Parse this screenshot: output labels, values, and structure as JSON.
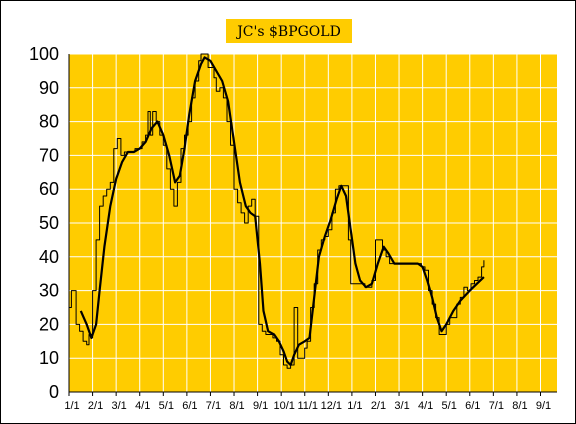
{
  "chart_data": {
    "type": "line",
    "title": "JC's $BPGOLD",
    "ylim": [
      0,
      100
    ],
    "yticks": [
      0,
      10,
      20,
      30,
      40,
      50,
      60,
      70,
      80,
      90,
      100
    ],
    "xticks": [
      "1/1",
      "2/1",
      "3/1",
      "4/1",
      "5/1",
      "6/1",
      "7/1",
      "8/1",
      "9/1",
      "10/1",
      "11/1",
      "12/1",
      "1/1",
      "2/1",
      "3/1",
      "4/1",
      "5/1",
      "6/1",
      "7/1",
      "8/1",
      "9/1"
    ],
    "x_month_count": 20.7,
    "grid": true,
    "legend": "none",
    "colors": {
      "plot_background": "#FFCC00",
      "gridlines": "#FFFFFF",
      "title_background": "#FFCC00",
      "series_line": "#000000"
    },
    "series": [
      {
        "kind": "daily",
        "stroke_width": 1,
        "points": [
          [
            0.0,
            25
          ],
          [
            0.1,
            30
          ],
          [
            0.2,
            30
          ],
          [
            0.3,
            20
          ],
          [
            0.45,
            18
          ],
          [
            0.6,
            15
          ],
          [
            0.75,
            14
          ],
          [
            0.85,
            17
          ],
          [
            0.95,
            16
          ],
          [
            1.0,
            30
          ],
          [
            1.15,
            45
          ],
          [
            1.3,
            55
          ],
          [
            1.45,
            58
          ],
          [
            1.6,
            60
          ],
          [
            1.75,
            62
          ],
          [
            1.9,
            72
          ],
          [
            2.05,
            75
          ],
          [
            2.2,
            70
          ],
          [
            2.35,
            71
          ],
          [
            2.5,
            71
          ],
          [
            2.65,
            71
          ],
          [
            2.8,
            72
          ],
          [
            2.95,
            72
          ],
          [
            3.1,
            74
          ],
          [
            3.25,
            76
          ],
          [
            3.35,
            83
          ],
          [
            3.45,
            76
          ],
          [
            3.55,
            83
          ],
          [
            3.7,
            80
          ],
          [
            3.85,
            76
          ],
          [
            4.0,
            73
          ],
          [
            4.15,
            66
          ],
          [
            4.3,
            60
          ],
          [
            4.45,
            55
          ],
          [
            4.6,
            62
          ],
          [
            4.75,
            72
          ],
          [
            4.9,
            76
          ],
          [
            5.05,
            80
          ],
          [
            5.2,
            87
          ],
          [
            5.35,
            92
          ],
          [
            5.5,
            98
          ],
          [
            5.6,
            100
          ],
          [
            5.75,
            100
          ],
          [
            5.9,
            96
          ],
          [
            6.05,
            96
          ],
          [
            6.15,
            93
          ],
          [
            6.25,
            89
          ],
          [
            6.4,
            90
          ],
          [
            6.55,
            87
          ],
          [
            6.7,
            80
          ],
          [
            6.85,
            73
          ],
          [
            7.0,
            60
          ],
          [
            7.15,
            56
          ],
          [
            7.3,
            53
          ],
          [
            7.45,
            50
          ],
          [
            7.6,
            55
          ],
          [
            7.75,
            57
          ],
          [
            7.9,
            52
          ],
          [
            8.05,
            20
          ],
          [
            8.2,
            18
          ],
          [
            8.35,
            17
          ],
          [
            8.5,
            17
          ],
          [
            8.65,
            16
          ],
          [
            8.8,
            15
          ],
          [
            8.95,
            11
          ],
          [
            9.1,
            8
          ],
          [
            9.25,
            7
          ],
          [
            9.4,
            8
          ],
          [
            9.55,
            25
          ],
          [
            9.7,
            10
          ],
          [
            9.85,
            10
          ],
          [
            10.0,
            13
          ],
          [
            10.1,
            15
          ],
          [
            10.25,
            25
          ],
          [
            10.4,
            32
          ],
          [
            10.55,
            42
          ],
          [
            10.7,
            45
          ],
          [
            10.85,
            46
          ],
          [
            11.0,
            48
          ],
          [
            11.15,
            53
          ],
          [
            11.3,
            60
          ],
          [
            11.45,
            61
          ],
          [
            11.6,
            61
          ],
          [
            11.75,
            61
          ],
          [
            11.85,
            45
          ],
          [
            11.95,
            32
          ],
          [
            12.1,
            32
          ],
          [
            12.25,
            32
          ],
          [
            12.4,
            32
          ],
          [
            12.55,
            31
          ],
          [
            12.7,
            31
          ],
          [
            12.85,
            33
          ],
          [
            13.0,
            45
          ],
          [
            13.15,
            45
          ],
          [
            13.3,
            42
          ],
          [
            13.45,
            40
          ],
          [
            13.6,
            38
          ],
          [
            13.75,
            38
          ],
          [
            13.9,
            38
          ],
          [
            14.05,
            38
          ],
          [
            14.2,
            38
          ],
          [
            14.35,
            38
          ],
          [
            14.5,
            38
          ],
          [
            14.65,
            38
          ],
          [
            14.8,
            38
          ],
          [
            14.95,
            37
          ],
          [
            15.1,
            36
          ],
          [
            15.25,
            30
          ],
          [
            15.4,
            26
          ],
          [
            15.55,
            22
          ],
          [
            15.7,
            17
          ],
          [
            15.85,
            17
          ],
          [
            16.0,
            20
          ],
          [
            16.15,
            22
          ],
          [
            16.3,
            22
          ],
          [
            16.45,
            26
          ],
          [
            16.6,
            28
          ],
          [
            16.75,
            31
          ],
          [
            16.9,
            30
          ],
          [
            17.05,
            32
          ],
          [
            17.2,
            33
          ],
          [
            17.35,
            34
          ],
          [
            17.5,
            37
          ],
          [
            17.6,
            39
          ]
        ]
      },
      {
        "kind": "smoothed",
        "stroke_width": 2.2,
        "points": [
          [
            0.5,
            24
          ],
          [
            0.75,
            20
          ],
          [
            0.95,
            16
          ],
          [
            1.15,
            20
          ],
          [
            1.3,
            30
          ],
          [
            1.5,
            43
          ],
          [
            1.75,
            55
          ],
          [
            2.0,
            63
          ],
          [
            2.25,
            68
          ],
          [
            2.5,
            71
          ],
          [
            2.75,
            71
          ],
          [
            3.0,
            72
          ],
          [
            3.25,
            74
          ],
          [
            3.5,
            78
          ],
          [
            3.75,
            80
          ],
          [
            4.0,
            76
          ],
          [
            4.25,
            70
          ],
          [
            4.5,
            62
          ],
          [
            4.7,
            64
          ],
          [
            4.9,
            72
          ],
          [
            5.1,
            82
          ],
          [
            5.35,
            92
          ],
          [
            5.6,
            97
          ],
          [
            5.75,
            99
          ],
          [
            6.0,
            98
          ],
          [
            6.25,
            95
          ],
          [
            6.5,
            92
          ],
          [
            6.75,
            86
          ],
          [
            7.0,
            74
          ],
          [
            7.25,
            62
          ],
          [
            7.5,
            55
          ],
          [
            7.7,
            53
          ],
          [
            7.9,
            52
          ],
          [
            8.1,
            38
          ],
          [
            8.25,
            24
          ],
          [
            8.45,
            18
          ],
          [
            8.7,
            17
          ],
          [
            8.9,
            15
          ],
          [
            9.1,
            12
          ],
          [
            9.25,
            9
          ],
          [
            9.4,
            8
          ],
          [
            9.55,
            11
          ],
          [
            9.75,
            14
          ],
          [
            10.0,
            15
          ],
          [
            10.2,
            16
          ],
          [
            10.4,
            28
          ],
          [
            10.6,
            40
          ],
          [
            10.85,
            46
          ],
          [
            11.1,
            51
          ],
          [
            11.35,
            57
          ],
          [
            11.55,
            61
          ],
          [
            11.75,
            58
          ],
          [
            11.95,
            48
          ],
          [
            12.15,
            38
          ],
          [
            12.35,
            33
          ],
          [
            12.6,
            31
          ],
          [
            12.85,
            32
          ],
          [
            13.1,
            38
          ],
          [
            13.35,
            43
          ],
          [
            13.55,
            41
          ],
          [
            13.8,
            38
          ],
          [
            14.1,
            38
          ],
          [
            14.5,
            38
          ],
          [
            14.8,
            38
          ],
          [
            15.0,
            37
          ],
          [
            15.2,
            33
          ],
          [
            15.4,
            28
          ],
          [
            15.6,
            22
          ],
          [
            15.8,
            18
          ],
          [
            16.0,
            20
          ],
          [
            16.3,
            24
          ],
          [
            16.6,
            27
          ],
          [
            17.0,
            30
          ],
          [
            17.3,
            32
          ],
          [
            17.6,
            34
          ]
        ]
      }
    ]
  }
}
